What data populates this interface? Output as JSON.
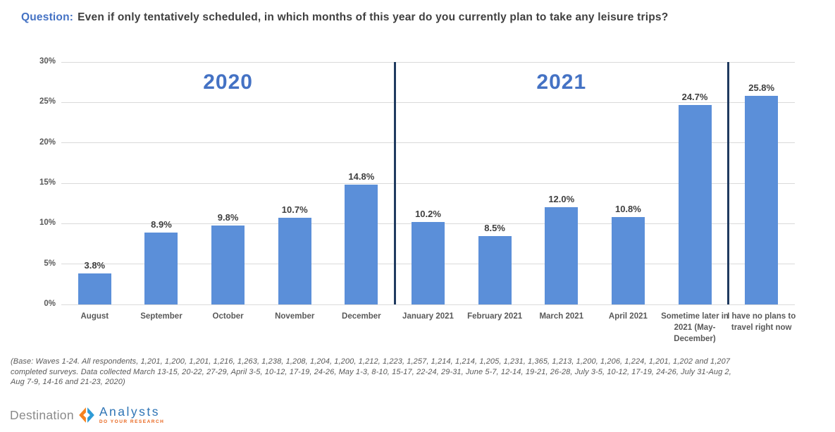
{
  "title": {
    "prefix": "Question:",
    "text": "Even if only tentatively scheduled, in which months of this year do you currently plan to take any leisure trips?"
  },
  "chart_data": {
    "type": "bar",
    "categories": [
      "August",
      "September",
      "October",
      "November",
      "December",
      "January 2021",
      "February 2021",
      "March 2021",
      "April 2021",
      "Sometime later in 2021 (May-December)",
      "I have no plans to travel right now"
    ],
    "values": [
      3.8,
      8.9,
      9.8,
      10.7,
      14.8,
      10.2,
      8.5,
      12.0,
      10.8,
      24.7,
      25.8
    ],
    "value_labels": [
      "3.8%",
      "8.9%",
      "9.8%",
      "10.7%",
      "14.8%",
      "10.2%",
      "8.5%",
      "12.0%",
      "10.8%",
      "24.7%",
      "25.8%"
    ],
    "title": "",
    "xlabel": "",
    "ylabel": "",
    "ylim": [
      0,
      30
    ],
    "ytick_values": [
      0,
      5,
      10,
      15,
      20,
      25,
      30
    ],
    "ytick_labels": [
      "0%",
      "5%",
      "10%",
      "15%",
      "20%",
      "25%",
      "30%"
    ],
    "grid": "horizontal",
    "legend": "none",
    "groups": [
      {
        "label": "2020",
        "from": 0,
        "to": 4
      },
      {
        "label": "2021",
        "from": 5,
        "to": 9
      }
    ],
    "dividers_after_index": [
      4,
      9
    ],
    "bar_color": "#5B8FD9",
    "divider_color": "#1F3A5F",
    "group_label_color": "#4472C4"
  },
  "footnote": {
    "lines": [
      "(Base: Waves 1-24. All respondents, 1,201, 1,200, 1,201, 1,216, 1,263, 1,238, 1,208, 1,204, 1,200, 1,212, 1,223, 1,257, 1,214, 1,214, 1,205, 1,231, 1,365, 1,213, 1,200, 1,206, 1,224, 1,201, 1,202 and 1,207",
      "completed surveys. Data collected March 13-15, 20-22, 27-29, April 3-5, 10-12, 17-19, 24-26, May 1-3, 8-10, 15-17, 22-24, 29-31, June 5-7, 12-14, 19-21, 26-28, July 3-5, 10-12, 17-19, 24-26, July 31-Aug 2,",
      "Aug 7-9, 14-16 and 21-23, 2020)"
    ]
  },
  "logo": {
    "destination": "Destination",
    "analysts": "Analysts",
    "tagline": "DO YOUR RESEARCH",
    "orange": "#F5821F",
    "blue": "#2E9BD6"
  }
}
